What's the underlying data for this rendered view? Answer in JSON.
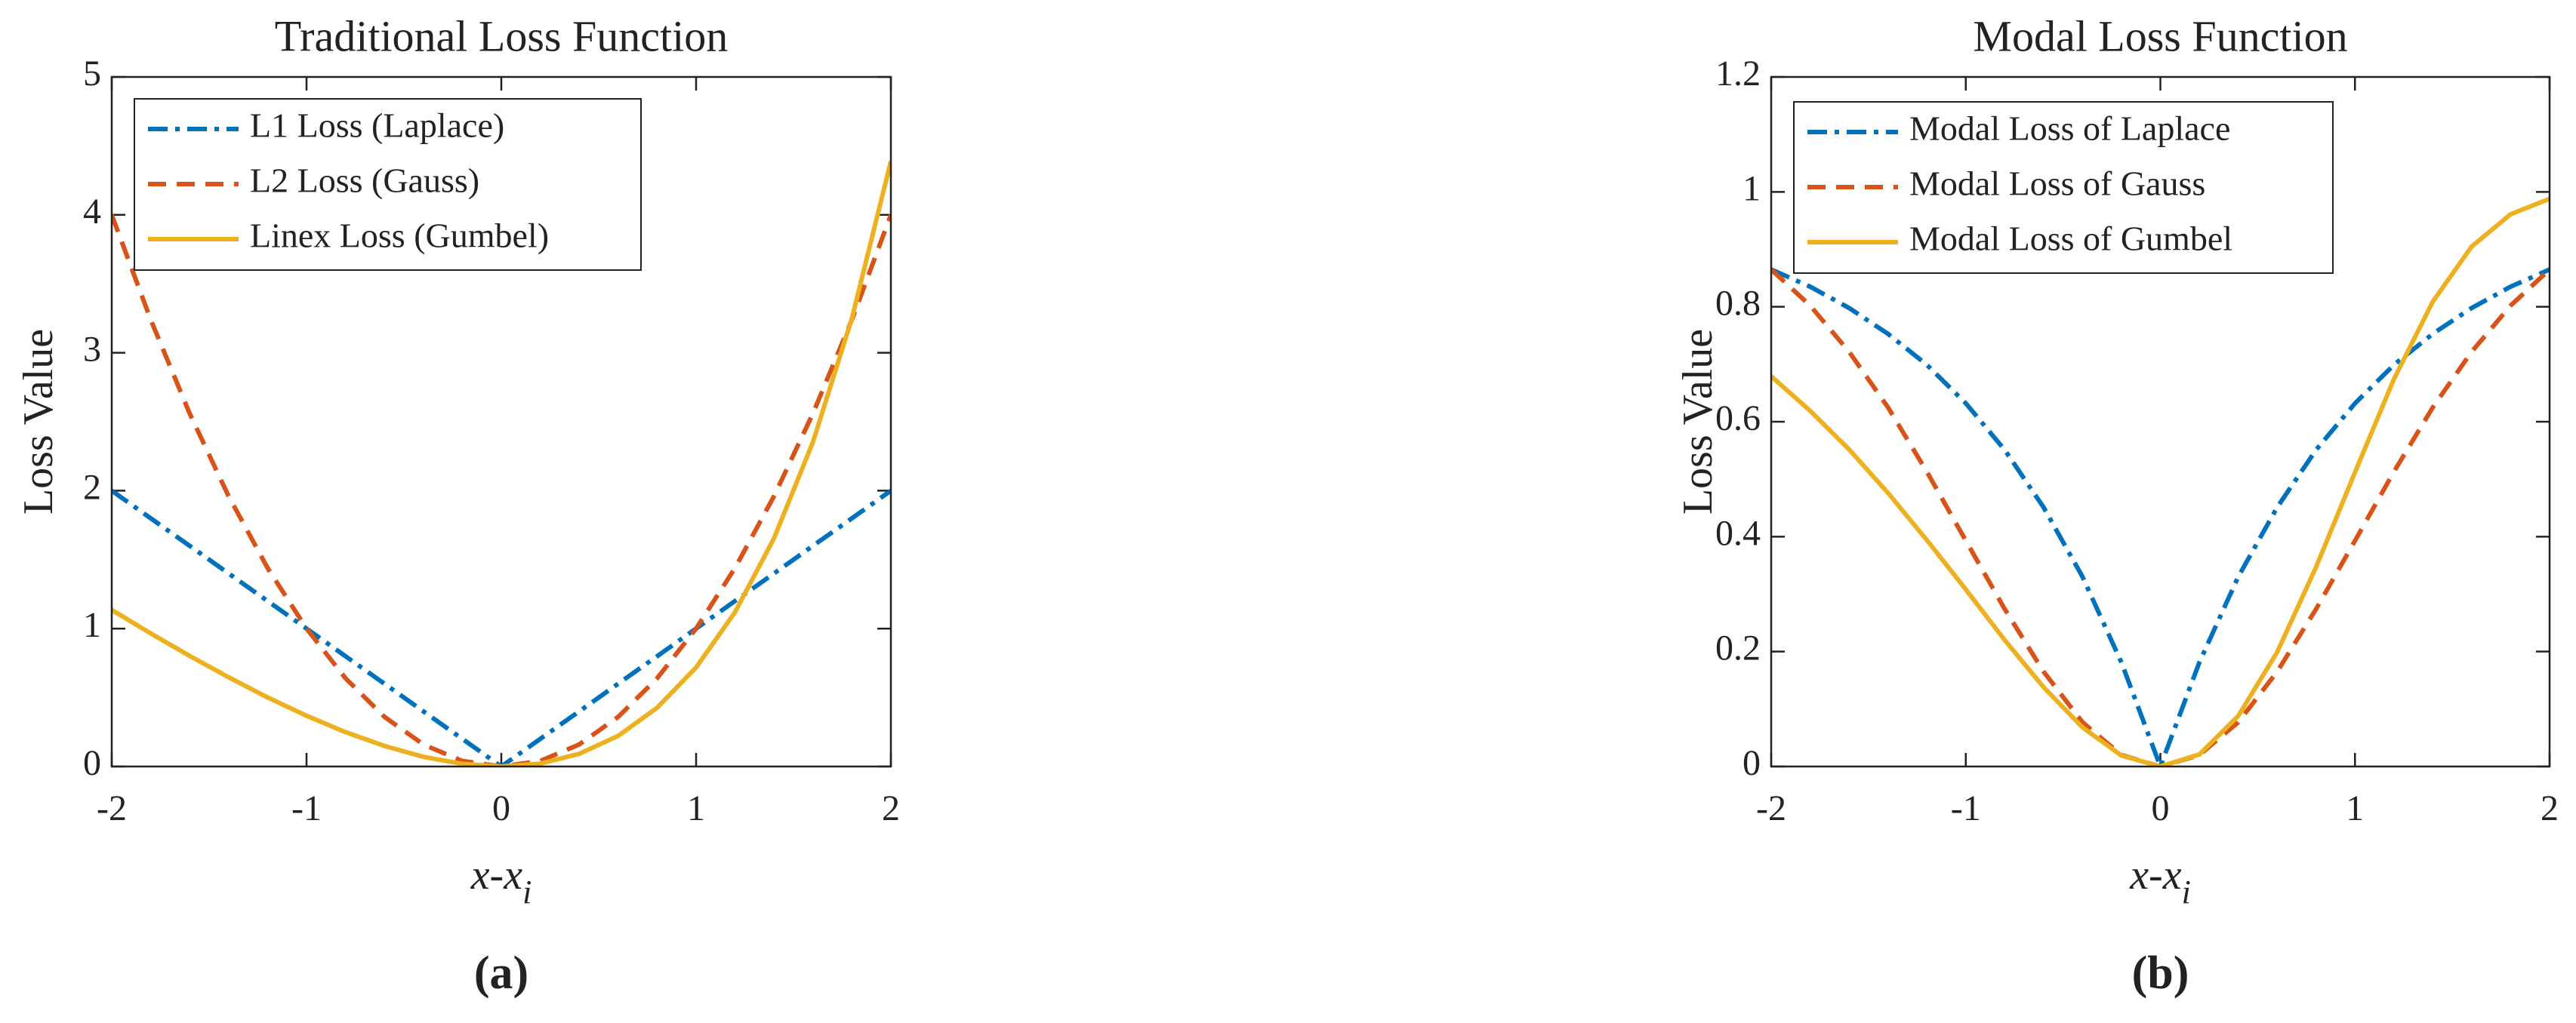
{
  "chart_data": [
    {
      "type": "line",
      "title": "Traditional Loss Function",
      "ylabel": "Loss Value",
      "xlabel": "x-x",
      "xlabel_subscript": "i",
      "panel_label": "(a)",
      "x": [
        -2,
        -1.8,
        -1.6,
        -1.4,
        -1.2,
        -1,
        -0.8,
        -0.6,
        -0.4,
        -0.2,
        0,
        0.2,
        0.4,
        0.6,
        0.8,
        1,
        1.2,
        1.4,
        1.6,
        1.8,
        2
      ],
      "xlim": [
        -2,
        2
      ],
      "xticks": [
        -2,
        -1,
        0,
        1,
        2
      ],
      "ylim": [
        0,
        5
      ],
      "yticks": [
        0,
        1,
        2,
        3,
        4,
        5
      ],
      "legend": "upper left",
      "series": [
        {
          "name": "L1 Loss (Laplace)",
          "color": "#0072BD",
          "style": "dash-dot",
          "values": [
            2,
            1.8,
            1.6,
            1.4,
            1.2,
            1,
            0.8,
            0.6,
            0.4,
            0.2,
            0,
            0.2,
            0.4,
            0.6,
            0.8,
            1,
            1.2,
            1.4,
            1.6,
            1.8,
            2
          ]
        },
        {
          "name": "L2 Loss (Gauss)",
          "color": "#D95319",
          "style": "dashed",
          "values": [
            4,
            3.24,
            2.56,
            1.96,
            1.44,
            1,
            0.64,
            0.36,
            0.16,
            0.04,
            0,
            0.04,
            0.16,
            0.36,
            0.64,
            1,
            1.44,
            1.96,
            2.56,
            3.24,
            4
          ]
        },
        {
          "name": "Linex Loss (Gumbel)",
          "color": "#EDB120",
          "style": "solid",
          "values": [
            1.135,
            0.965,
            0.802,
            0.647,
            0.501,
            0.368,
            0.249,
            0.149,
            0.07,
            0.019,
            0,
            0.021,
            0.092,
            0.222,
            0.426,
            0.718,
            1.12,
            1.655,
            2.353,
            3.25,
            4.389
          ]
        }
      ]
    },
    {
      "type": "line",
      "title": "Modal Loss Function",
      "ylabel": "Loss Value",
      "xlabel": "x-x",
      "xlabel_subscript": "i",
      "panel_label": "(b)",
      "x": [
        -2,
        -1.8,
        -1.6,
        -1.4,
        -1.2,
        -1,
        -0.8,
        -0.6,
        -0.4,
        -0.2,
        0,
        0.2,
        0.4,
        0.6,
        0.8,
        1,
        1.2,
        1.4,
        1.6,
        1.8,
        2
      ],
      "xlim": [
        -2,
        2
      ],
      "xticks": [
        -2,
        -1,
        0,
        1,
        2
      ],
      "ylim": [
        0,
        1.2
      ],
      "yticks": [
        0,
        0.2,
        0.4,
        0.6,
        0.8,
        1,
        1.2
      ],
      "legend": "upper left",
      "series": [
        {
          "name": "Modal Loss of Laplace",
          "color": "#0072BD",
          "style": "dash-dot",
          "values": [
            0.865,
            0.835,
            0.798,
            0.753,
            0.699,
            0.632,
            0.551,
            0.451,
            0.33,
            0.181,
            0,
            0.181,
            0.33,
            0.451,
            0.551,
            0.632,
            0.699,
            0.753,
            0.798,
            0.835,
            0.865
          ]
        },
        {
          "name": "Modal Loss of Gauss",
          "color": "#D95319",
          "style": "dashed",
          "values": [
            0.865,
            0.802,
            0.722,
            0.625,
            0.513,
            0.393,
            0.274,
            0.165,
            0.077,
            0.02,
            0,
            0.02,
            0.077,
            0.165,
            0.274,
            0.393,
            0.513,
            0.625,
            0.722,
            0.802,
            0.865
          ]
        },
        {
          "name": "Modal Loss of Gumbel",
          "color": "#EDB120",
          "style": "solid",
          "values": [
            0.679,
            0.619,
            0.552,
            0.476,
            0.394,
            0.308,
            0.22,
            0.138,
            0.068,
            0.019,
            0,
            0.021,
            0.088,
            0.199,
            0.347,
            0.512,
            0.674,
            0.809,
            0.905,
            0.961,
            0.988
          ]
        }
      ]
    }
  ]
}
